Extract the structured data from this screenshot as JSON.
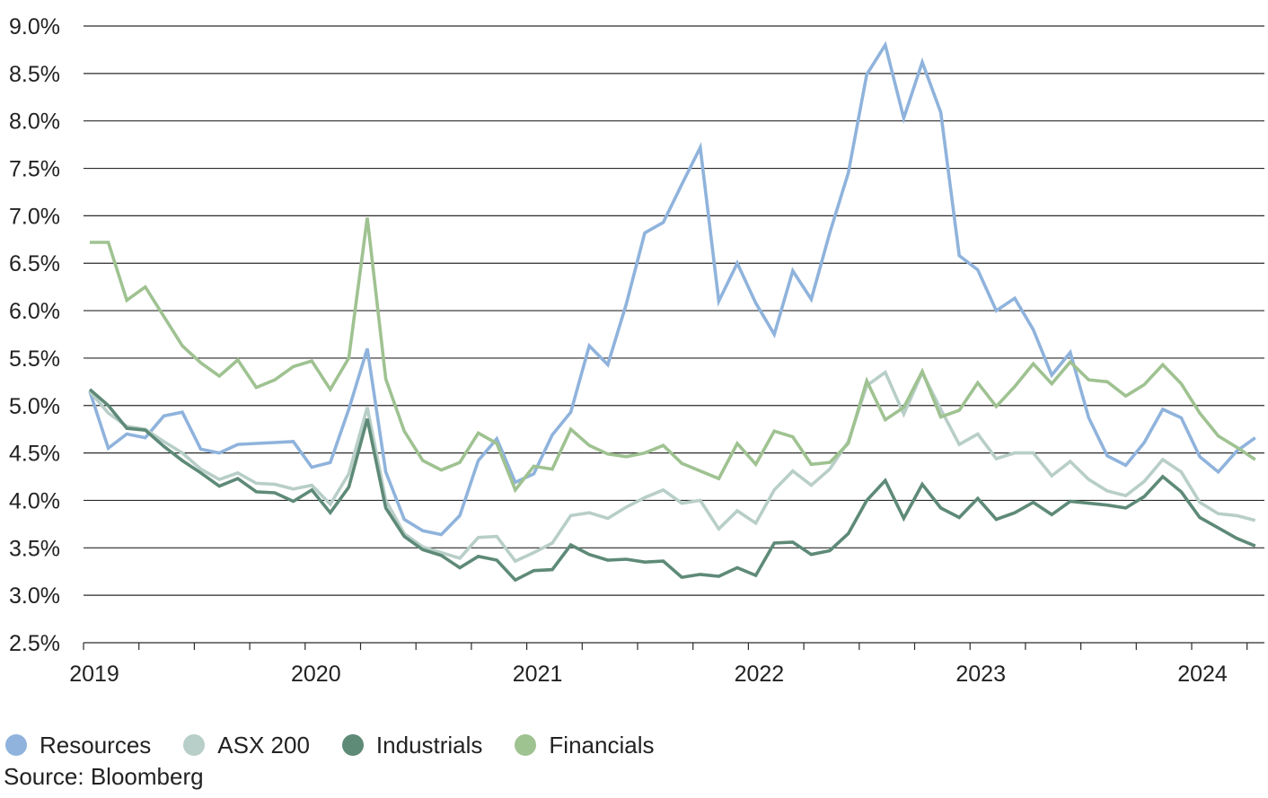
{
  "chart_data": {
    "type": "line",
    "title": "",
    "xlabel": "",
    "ylabel": "",
    "ylim": [
      2.5,
      9.0
    ],
    "y_ticks": [
      "9.0%",
      "8.5%",
      "8.0%",
      "7.5%",
      "7.0%",
      "6.5%",
      "6.0%",
      "5.5%",
      "5.0%",
      "4.5%",
      "4.0%",
      "3.5%",
      "3.0%",
      "2.5%"
    ],
    "x_ticks": [
      "2019",
      "2020",
      "2021",
      "2022",
      "2023",
      "2024"
    ],
    "x_start": "2019-01",
    "grid": "horizontal",
    "legend_position": "bottom-left",
    "series": [
      {
        "name": "Resources",
        "color": "#8fb3dc",
        "values": [
          5.15,
          4.55,
          4.7,
          4.66,
          4.89,
          4.93,
          4.54,
          4.5,
          4.59,
          4.6,
          4.61,
          4.62,
          4.35,
          4.4,
          4.96,
          5.6,
          4.3,
          3.8,
          3.68,
          3.64,
          3.84,
          4.42,
          4.65,
          4.19,
          4.28,
          4.69,
          4.93,
          5.63,
          5.43,
          6.07,
          6.82,
          6.93,
          7.33,
          7.72,
          6.1,
          6.5,
          6.08,
          5.75,
          6.42,
          6.12,
          6.82,
          7.45,
          8.49,
          8.8,
          8.03,
          8.62,
          8.09,
          6.58,
          6.43,
          6.0,
          6.13,
          5.8,
          5.32,
          5.56,
          4.87,
          4.47,
          4.37,
          4.61,
          4.96,
          4.87,
          4.46,
          4.3,
          4.52,
          4.66
        ]
      },
      {
        "name": "ASX 200",
        "color": "#b8cec8",
        "values": [
          5.15,
          4.92,
          4.78,
          4.75,
          4.62,
          4.5,
          4.33,
          4.22,
          4.29,
          4.18,
          4.17,
          4.12,
          4.16,
          3.96,
          4.28,
          4.98,
          4.0,
          3.65,
          3.51,
          3.45,
          3.39,
          3.61,
          3.62,
          3.36,
          3.45,
          3.55,
          3.84,
          3.87,
          3.81,
          3.93,
          4.03,
          4.11,
          3.97,
          4.0,
          3.7,
          3.89,
          3.76,
          4.11,
          4.31,
          4.16,
          4.33,
          4.62,
          5.21,
          5.35,
          4.91,
          5.35,
          4.96,
          4.59,
          4.7,
          4.44,
          4.5,
          4.5,
          4.26,
          4.41,
          4.22,
          4.1,
          4.05,
          4.2,
          4.43,
          4.3,
          3.98,
          3.86,
          3.84,
          3.79
        ]
      },
      {
        "name": "Industrials",
        "color": "#5e8a78",
        "values": [
          5.17,
          5.0,
          4.76,
          4.74,
          4.57,
          4.42,
          4.29,
          4.15,
          4.23,
          4.09,
          4.08,
          3.99,
          4.11,
          3.87,
          4.14,
          4.86,
          3.92,
          3.62,
          3.48,
          3.42,
          3.29,
          3.41,
          3.37,
          3.16,
          3.26,
          3.27,
          3.53,
          3.43,
          3.37,
          3.38,
          3.35,
          3.36,
          3.19,
          3.22,
          3.2,
          3.29,
          3.21,
          3.55,
          3.56,
          3.43,
          3.47,
          3.65,
          4.0,
          4.21,
          3.81,
          4.17,
          3.92,
          3.82,
          4.02,
          3.8,
          3.87,
          3.98,
          3.85,
          3.99,
          3.97,
          3.95,
          3.92,
          4.04,
          4.25,
          4.09,
          3.82,
          3.71,
          3.6,
          3.52
        ]
      },
      {
        "name": "Financials",
        "color": "#9fc291",
        "values": [
          6.72,
          6.72,
          6.11,
          6.25,
          5.94,
          5.63,
          5.45,
          5.31,
          5.48,
          5.19,
          5.27,
          5.41,
          5.47,
          5.17,
          5.5,
          6.98,
          5.28,
          4.73,
          4.42,
          4.32,
          4.4,
          4.71,
          4.6,
          4.11,
          4.36,
          4.33,
          4.75,
          4.58,
          4.49,
          4.46,
          4.5,
          4.58,
          4.39,
          4.31,
          4.23,
          4.6,
          4.38,
          4.73,
          4.67,
          4.38,
          4.4,
          4.6,
          5.26,
          4.85,
          4.98,
          5.36,
          4.88,
          4.95,
          5.24,
          4.99,
          5.2,
          5.44,
          5.23,
          5.46,
          5.27,
          5.25,
          5.1,
          5.22,
          5.43,
          5.23,
          4.92,
          4.68,
          4.56,
          4.43
        ]
      }
    ]
  },
  "legend": {
    "items": [
      {
        "label": "Resources",
        "color": "#8fb3dc"
      },
      {
        "label": "ASX 200",
        "color": "#b8cec8"
      },
      {
        "label": "Industrials",
        "color": "#5e8a78"
      },
      {
        "label": "Financials",
        "color": "#9fc291"
      }
    ]
  },
  "source": "Source: Bloomberg"
}
